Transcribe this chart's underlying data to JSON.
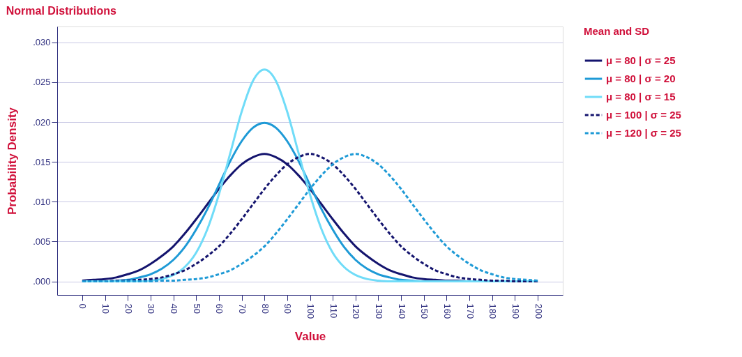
{
  "chart_data": {
    "type": "line",
    "title": "Normal Distributions",
    "xlabel": "Value",
    "ylabel": "Probability Density",
    "legend_title": "Mean and SD",
    "legend": "right",
    "grid": "y",
    "x": [
      0,
      5,
      10,
      15,
      20,
      25,
      30,
      35,
      40,
      45,
      50,
      55,
      60,
      65,
      70,
      75,
      80,
      85,
      90,
      95,
      100,
      105,
      110,
      115,
      120,
      125,
      130,
      135,
      140,
      145,
      150,
      155,
      160,
      165,
      170,
      175,
      180,
      185,
      190,
      195,
      200
    ],
    "xlim": [
      -11,
      211
    ],
    "xticks": [
      0,
      10,
      20,
      30,
      40,
      50,
      60,
      70,
      80,
      90,
      100,
      110,
      120,
      130,
      140,
      150,
      160,
      170,
      180,
      190,
      200
    ],
    "ylim": [
      -0.0017,
      0.032
    ],
    "yticks": [
      {
        "value": 0,
        "label": ".000"
      },
      {
        "value": 0.005,
        "label": ".005"
      },
      {
        "value": 0.01,
        "label": ".010"
      },
      {
        "value": 0.015,
        "label": ".015"
      },
      {
        "value": 0.02,
        "label": ".020"
      },
      {
        "value": 0.025,
        "label": ".025"
      },
      {
        "value": 0.03,
        "label": ".030"
      }
    ],
    "series": [
      {
        "name": "μ = 80  | σ = 25",
        "color": "#14146e",
        "line_style": "solid",
        "values": [
          0.0001,
          0.0002,
          0.0003,
          0.0005,
          0.0009,
          0.0014,
          0.0022,
          0.0032,
          0.0044,
          0.006,
          0.0078,
          0.0097,
          0.0116,
          0.0133,
          0.0147,
          0.0156,
          0.016,
          0.0156,
          0.0147,
          0.0133,
          0.0116,
          0.0097,
          0.0078,
          0.006,
          0.0044,
          0.0032,
          0.0022,
          0.0014,
          0.0009,
          0.0005,
          0.0003,
          0.0002,
          0.0001,
          0.0001,
          0,
          0,
          0,
          0,
          0,
          0,
          0
        ]
      },
      {
        "name": "μ = 80  | σ = 20",
        "color": "#1e9ad6",
        "line_style": "solid",
        "values": [
          0,
          0,
          0,
          0.0001,
          0.0002,
          0.0005,
          0.0009,
          0.0016,
          0.0027,
          0.0043,
          0.0065,
          0.0091,
          0.0121,
          0.0151,
          0.0176,
          0.0193,
          0.0199,
          0.0193,
          0.0176,
          0.0151,
          0.0121,
          0.0091,
          0.0065,
          0.0043,
          0.0027,
          0.0016,
          0.0009,
          0.0005,
          0.0002,
          0.0001,
          0,
          0,
          0,
          0,
          0,
          0,
          0,
          0,
          0,
          0,
          0
        ]
      },
      {
        "name": "μ = 80  | σ = 15",
        "color": "#70dcf8",
        "line_style": "solid",
        "values": [
          0,
          0,
          0,
          0,
          0,
          0,
          0.0001,
          0.0003,
          0.0008,
          0.0018,
          0.0036,
          0.0066,
          0.0109,
          0.0161,
          0.0213,
          0.0252,
          0.0266,
          0.0252,
          0.0213,
          0.0161,
          0.0109,
          0.0066,
          0.0036,
          0.0018,
          0.0008,
          0.0003,
          0.0001,
          0,
          0,
          0,
          0,
          0,
          0,
          0,
          0,
          0,
          0,
          0,
          0,
          0,
          0
        ]
      },
      {
        "name": "μ = 100 | σ = 25",
        "color": "#14146e",
        "line_style": "dashed",
        "values": [
          0,
          0,
          0,
          0.0001,
          0.0001,
          0.0002,
          0.0003,
          0.0005,
          0.0009,
          0.0014,
          0.0022,
          0.0032,
          0.0044,
          0.006,
          0.0078,
          0.0097,
          0.0116,
          0.0133,
          0.0147,
          0.0156,
          0.016,
          0.0156,
          0.0147,
          0.0133,
          0.0116,
          0.0097,
          0.0078,
          0.006,
          0.0044,
          0.0032,
          0.0022,
          0.0014,
          0.0009,
          0.0005,
          0.0003,
          0.0002,
          0.0001,
          0.0001,
          0,
          0,
          0
        ]
      },
      {
        "name": "μ = 120 | σ = 25",
        "color": "#1e9ad6",
        "line_style": "dashed",
        "values": [
          0,
          0,
          0,
          0,
          0,
          0,
          0,
          0.0001,
          0.0001,
          0.0002,
          0.0003,
          0.0005,
          0.0009,
          0.0014,
          0.0022,
          0.0032,
          0.0044,
          0.006,
          0.0078,
          0.0097,
          0.0116,
          0.0133,
          0.0147,
          0.0156,
          0.016,
          0.0156,
          0.0147,
          0.0133,
          0.0116,
          0.0097,
          0.0078,
          0.006,
          0.0044,
          0.0032,
          0.0022,
          0.0014,
          0.0009,
          0.0005,
          0.0003,
          0.0002,
          0.0001
        ]
      }
    ]
  }
}
